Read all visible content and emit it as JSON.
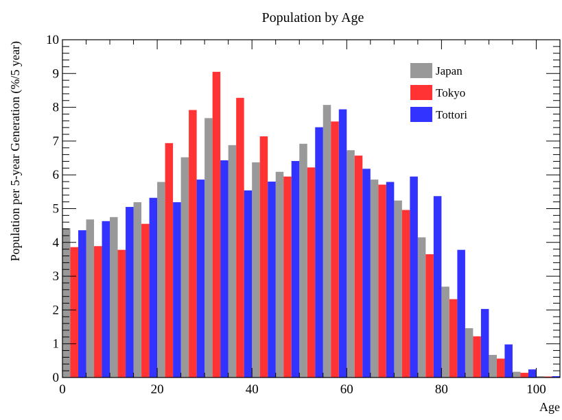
{
  "chart_data": {
    "type": "bar",
    "title": "Population by Age",
    "xlabel": "Age",
    "ylabel": "Population per 5-year Generation (%/5 year)",
    "xlim": [
      0,
      105
    ],
    "ylim": [
      0,
      10
    ],
    "bin_width": 5,
    "bin_starts": [
      0,
      5,
      10,
      15,
      20,
      25,
      30,
      35,
      40,
      45,
      50,
      55,
      60,
      65,
      70,
      75,
      80,
      85,
      90,
      95,
      100
    ],
    "x_ticks": [
      0,
      20,
      40,
      60,
      80,
      100
    ],
    "y_ticks": [
      0,
      1,
      2,
      3,
      4,
      5,
      6,
      7,
      8,
      9,
      10
    ],
    "grid": false,
    "legend_position": "top-right",
    "series": [
      {
        "name": "Japan",
        "color": "#999999",
        "values": [
          4.42,
          4.68,
          4.75,
          5.19,
          5.79,
          6.52,
          7.68,
          6.88,
          6.37,
          6.09,
          6.92,
          8.07,
          6.73,
          5.86,
          5.24,
          4.15,
          2.69,
          1.46,
          0.67,
          0.17,
          0.04
        ]
      },
      {
        "name": "Tokyo",
        "color": "#ff3333",
        "values": [
          3.86,
          3.89,
          3.78,
          4.55,
          6.94,
          7.92,
          9.05,
          8.28,
          7.14,
          5.95,
          6.22,
          7.58,
          6.57,
          5.71,
          4.96,
          3.65,
          2.32,
          1.22,
          0.56,
          0.14,
          0.03
        ]
      },
      {
        "name": "Tottori",
        "color": "#3333ff",
        "values": [
          4.36,
          4.63,
          5.05,
          5.32,
          5.19,
          5.86,
          6.43,
          5.54,
          5.8,
          6.41,
          7.41,
          7.94,
          6.18,
          5.79,
          5.95,
          5.37,
          3.78,
          2.03,
          0.98,
          0.24,
          0.04
        ]
      }
    ]
  }
}
